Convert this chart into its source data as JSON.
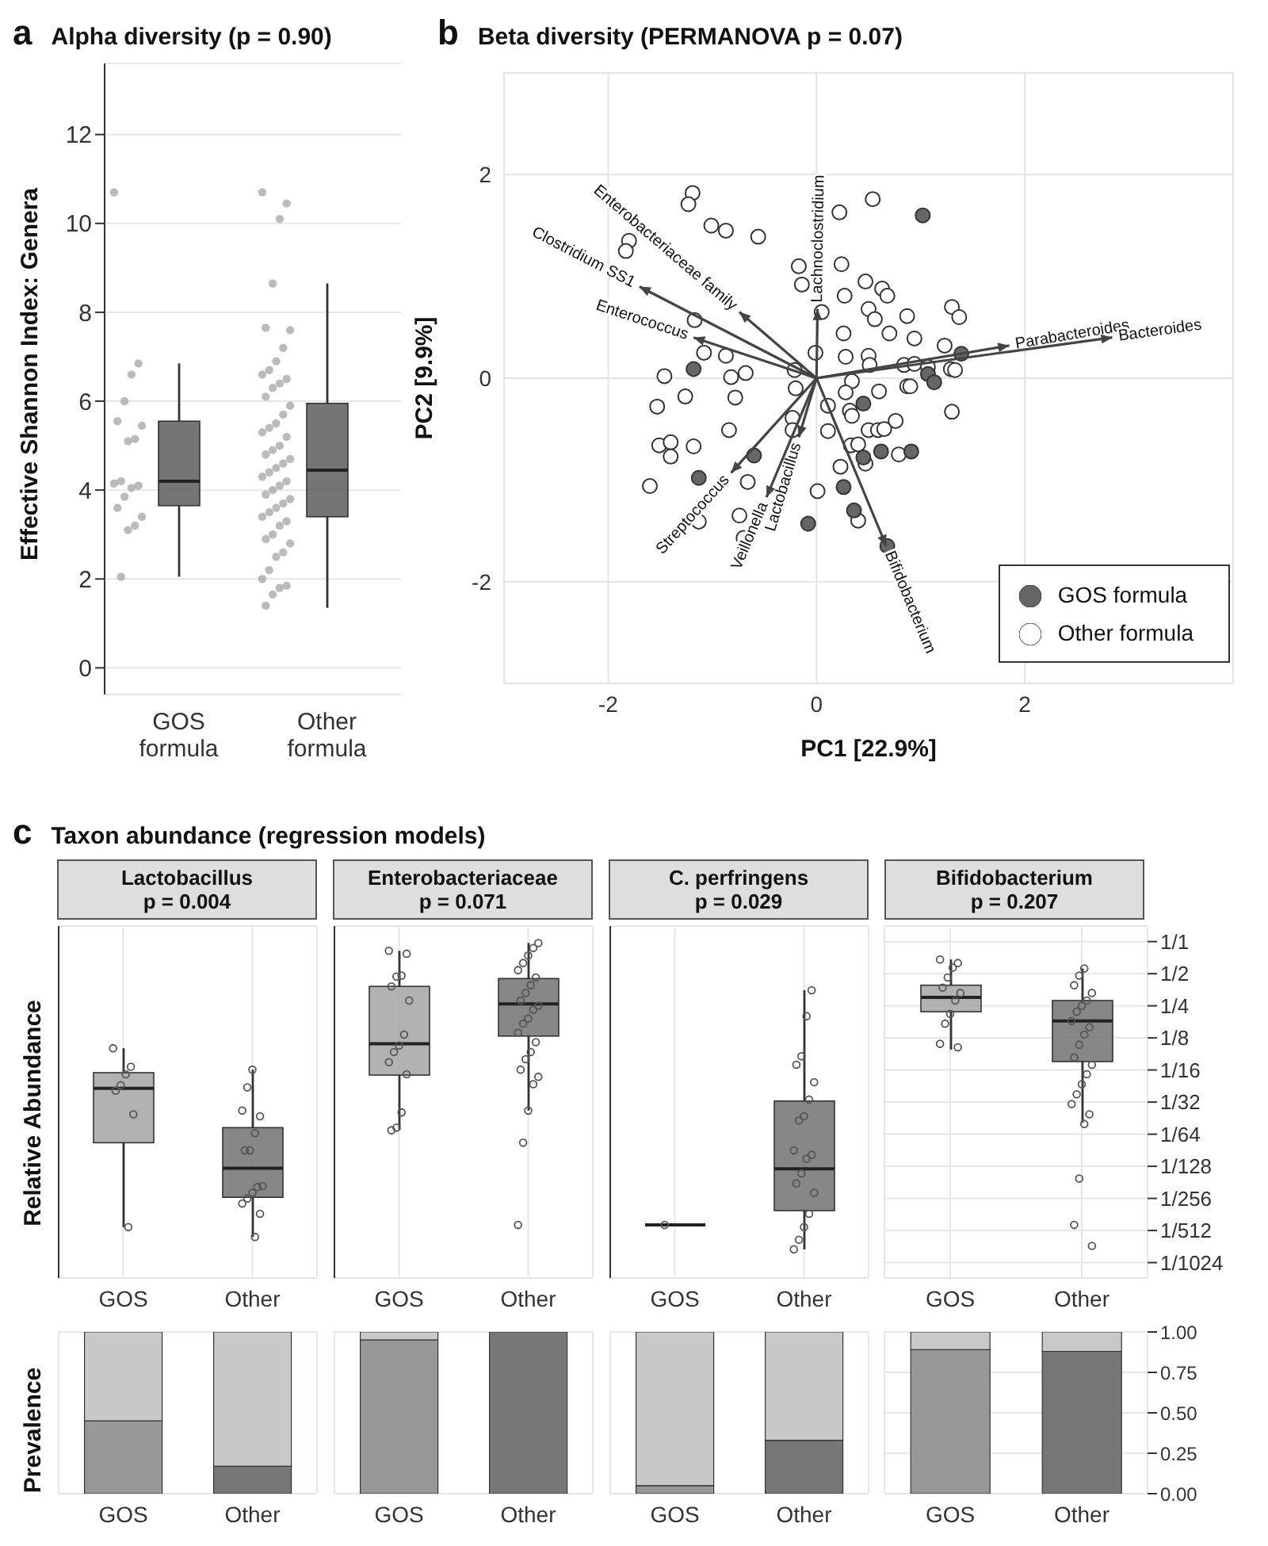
{
  "chart_data": [
    {
      "type": "box",
      "title": "Alpha diversity (p = 0.90)",
      "ylabel": "Effective Shannon Index: Genera",
      "annotations": [
        "a"
      ],
      "categories": [
        "GOS formula",
        "Other formula"
      ],
      "colors": [
        "#666666",
        "#666666"
      ],
      "ylim": [
        -0.6,
        13.6
      ],
      "yticks": [
        0,
        2,
        4,
        6,
        8,
        10,
        12
      ],
      "grid": "y",
      "boxes": [
        {
          "low": 2.05,
          "q1": 3.65,
          "median": 4.2,
          "q3": 5.55,
          "high": 6.85
        },
        {
          "low": 1.35,
          "q1": 3.4,
          "median": 4.45,
          "q3": 5.95,
          "high": 8.65
        }
      ],
      "series": [
        {
          "type": "scatter",
          "color": "#aaaaaa",
          "x": [
            "GOS formula",
            "GOS formula",
            "GOS formula",
            "GOS formula",
            "GOS formula",
            "GOS formula",
            "GOS formula",
            "GOS formula",
            "GOS formula",
            "GOS formula",
            "GOS formula",
            "GOS formula",
            "GOS formula",
            "GOS formula",
            "GOS formula",
            "GOS formula",
            "GOS formula",
            "GOS formula",
            "Other formula",
            "Other formula",
            "Other formula",
            "Other formula",
            "Other formula",
            "Other formula",
            "Other formula",
            "Other formula",
            "Other formula",
            "Other formula",
            "Other formula",
            "Other formula",
            "Other formula",
            "Other formula",
            "Other formula",
            "Other formula",
            "Other formula",
            "Other formula",
            "Other formula",
            "Other formula",
            "Other formula",
            "Other formula",
            "Other formula",
            "Other formula",
            "Other formula",
            "Other formula",
            "Other formula",
            "Other formula",
            "Other formula",
            "Other formula",
            "Other formula",
            "Other formula",
            "Other formula",
            "Other formula",
            "Other formula",
            "Other formula",
            "Other formula",
            "Other formula",
            "Other formula",
            "Other formula",
            "Other formula",
            "Other formula",
            "Other formula",
            "Other formula",
            "Other formula",
            "Other formula",
            "Other formula",
            "Other formula",
            "Other formula",
            "Other formula"
          ],
          "values": [
            10.7,
            6.85,
            6.6,
            6.0,
            5.55,
            5.45,
            5.15,
            5.1,
            4.2,
            4.15,
            4.1,
            4.05,
            3.85,
            3.6,
            3.4,
            3.2,
            3.1,
            2.05,
            10.7,
            10.45,
            10.1,
            8.65,
            7.65,
            7.6,
            7.2,
            6.9,
            6.7,
            6.6,
            6.5,
            6.4,
            6.3,
            6.1,
            5.9,
            5.7,
            5.5,
            5.4,
            5.3,
            5.2,
            5.0,
            4.9,
            4.8,
            4.7,
            4.6,
            4.5,
            4.4,
            4.3,
            4.2,
            4.1,
            4.0,
            3.9,
            3.8,
            3.7,
            3.6,
            3.5,
            3.4,
            3.3,
            3.2,
            3.0,
            2.9,
            2.8,
            2.6,
            2.5,
            2.2,
            2.0,
            1.85,
            1.8,
            1.65,
            1.4
          ]
        }
      ]
    },
    {
      "type": "scatter",
      "title": "Beta diversity (PERMANOVA p = 0.07)",
      "xlabel": "PC1 [22.9%]",
      "ylabel": "PC2 [9.9%]",
      "xlim": [
        -3,
        4
      ],
      "ylim": [
        -3,
        3
      ],
      "xticks": [
        -2,
        0,
        2
      ],
      "yticks": [
        -2,
        0,
        2
      ],
      "grid": true,
      "legend": "bottom right",
      "marker": "circle",
      "annotations": [
        "b",
        "Enterobacteriaceae  family",
        "Clostridium  SS1",
        "Enterococcus",
        "Lachnoclostridium",
        "Parabacteroides",
        "Bacteroides",
        "Streptococcus",
        "Lactobacillus",
        "Veillonella",
        "Bifidobacterium"
      ],
      "series": [
        {
          "name": "GOS formula",
          "color": "#666666",
          "x": [
            1.02,
            -1.18,
            1.39,
            1.07,
            1.13,
            0.45,
            0.62,
            0.91,
            0.45,
            -0.6,
            -1.13,
            0.26,
            0.36,
            -0.08,
            0.68
          ],
          "values": [
            1.6,
            0.09,
            0.24,
            0.04,
            -0.04,
            -0.25,
            -0.72,
            -0.72,
            -0.78,
            -0.76,
            -0.98,
            -1.07,
            -1.3,
            -1.43,
            -1.65
          ]
        },
        {
          "name": "Other formula",
          "color": "#ffffff",
          "x": [
            -1.19,
            -1.23,
            -1.01,
            -0.87,
            -0.56,
            -1.8,
            -1.83,
            0.54,
            0.22,
            -0.17,
            0.24,
            -0.14,
            0.47,
            0.63,
            0.68,
            0.27,
            0.05,
            0.5,
            0.56,
            0.87,
            1.3,
            1.37,
            0.7,
            0.94,
            0.26,
            1.23,
            -1.17,
            -1.08,
            -0.87,
            -0.01,
            0.28,
            0.5,
            0.51,
            0.84,
            0.94,
            1.07,
            1.29,
            1.33,
            -1.46,
            -0.82,
            -0.68,
            -0.21,
            0.34,
            -0.2,
            -1.26,
            -0.78,
            -1.53,
            0.28,
            0.6,
            0.87,
            0.9,
            0.11,
            0.32,
            0.34,
            0.76,
            1.3,
            -0.23,
            -0.23,
            0.11,
            0.5,
            0.59,
            0.65,
            -0.84,
            -1.51,
            -1.4,
            -1.18,
            -1.4,
            0.33,
            0.4,
            0.79,
            0.47,
            0.23,
            -0.66,
            -1.6,
            0.01,
            -0.74,
            0.4,
            -1.13,
            -0.7
          ],
          "values": [
            1.82,
            1.71,
            1.5,
            1.45,
            1.39,
            1.35,
            1.25,
            1.76,
            1.63,
            1.1,
            1.12,
            0.92,
            0.95,
            0.88,
            0.81,
            0.81,
            0.65,
            0.68,
            0.58,
            0.61,
            0.7,
            0.6,
            0.44,
            0.39,
            0.44,
            0.32,
            0.57,
            0.25,
            0.22,
            0.25,
            0.21,
            0.22,
            0.13,
            0.13,
            0.14,
            0.11,
            0.09,
            0.08,
            0.02,
            0.01,
            0.05,
            0.08,
            -0.03,
            -0.1,
            -0.18,
            -0.19,
            -0.28,
            -0.14,
            -0.13,
            -0.08,
            -0.08,
            -0.27,
            -0.32,
            -0.37,
            -0.42,
            -0.33,
            -0.39,
            -0.51,
            -0.52,
            -0.51,
            -0.51,
            -0.5,
            -0.51,
            -0.66,
            -0.63,
            -0.67,
            -0.77,
            -0.66,
            -0.65,
            -0.75,
            -0.84,
            -0.87,
            -1.02,
            -1.06,
            -1.11,
            -1.35,
            -1.4,
            -1.41,
            -1.57
          ]
        }
      ]
    },
    {
      "type": "box",
      "title": "Lactobacillus",
      "subtitle": "p = 0.004",
      "ylabel": "Relative Abundance",
      "annotations": [
        "c",
        "Taxon abundance (regression models)"
      ],
      "categories": [
        "GOS",
        "Other"
      ],
      "colors": [
        "#aaaaaa",
        "#7a7a7a"
      ],
      "log": true,
      "ylim": [
        0.0007,
        1.4
      ],
      "tick_labels": "x",
      "grid": true,
      "yticks": [
        {
          "value": 1,
          "label": null
        },
        {
          "value": 0.5,
          "label": null
        },
        {
          "value": 0.25,
          "label": null
        },
        {
          "value": 0.125,
          "label": null
        },
        {
          "value": 0.0625,
          "label": null
        },
        {
          "value": 0.03125,
          "label": null
        },
        {
          "value": 0.015625,
          "label": null
        },
        {
          "value": 0.0078125,
          "label": null
        },
        {
          "value": 0.00390625,
          "label": null
        },
        {
          "value": 0.001953125,
          "label": null
        },
        {
          "value": 0.0009765625,
          "label": null
        }
      ],
      "boxes": [
        {
          "low": 0.0021,
          "q1": 0.013,
          "median": 0.042,
          "q3": 0.059,
          "high": 0.1
        },
        {
          "low": 0.0017,
          "q1": 0.004,
          "median": 0.0075,
          "q3": 0.018,
          "high": 0.063
        }
      ],
      "series": [
        {
          "type": "scatter",
          "color": "#555555",
          "x": [
            "GOS",
            "GOS",
            "GOS",
            "GOS",
            "GOS",
            "GOS",
            "GOS",
            "Other",
            "Other",
            "Other",
            "Other",
            "Other",
            "Other",
            "Other",
            "Other",
            "Other",
            "Other",
            "Other",
            "Other",
            "Other",
            "Other"
          ],
          "values": [
            0.1,
            0.067,
            0.057,
            0.045,
            0.04,
            0.024,
            0.0021,
            0.063,
            0.043,
            0.026,
            0.023,
            0.016,
            0.011,
            0.011,
            0.0051,
            0.005,
            0.0044,
            0.0039,
            0.0035,
            0.0028,
            0.0017
          ]
        }
      ]
    },
    {
      "type": "box",
      "title": "Enterobacteriaceae",
      "subtitle": "p = 0.071",
      "categories": [
        "GOS",
        "Other"
      ],
      "colors": [
        "#aaaaaa",
        "#7a7a7a"
      ],
      "log": true,
      "ylim": [
        0.0007,
        1.4
      ],
      "tick_labels": "x",
      "grid": true,
      "yticks": [
        {
          "value": 1,
          "label": null
        },
        {
          "value": 0.5,
          "label": null
        },
        {
          "value": 0.25,
          "label": null
        },
        {
          "value": 0.125,
          "label": null
        },
        {
          "value": 0.0625,
          "label": null
        },
        {
          "value": 0.03125,
          "label": null
        },
        {
          "value": 0.015625,
          "label": null
        },
        {
          "value": 0.0078125,
          "label": null
        },
        {
          "value": 0.00390625,
          "label": null
        },
        {
          "value": 0.001953125,
          "label": null
        },
        {
          "value": 0.0009765625,
          "label": null
        }
      ],
      "boxes": [
        {
          "low": 0.017,
          "q1": 0.056,
          "median": 0.11,
          "q3": 0.38,
          "high": 0.82
        },
        {
          "low": 0.026,
          "q1": 0.13,
          "median": 0.26,
          "q3": 0.45,
          "high": 0.97
        }
      ],
      "series": [
        {
          "type": "scatter",
          "color": "#555555",
          "x": [
            "GOS",
            "GOS",
            "GOS",
            "GOS",
            "GOS",
            "GOS",
            "GOS",
            "GOS",
            "GOS",
            "GOS",
            "GOS",
            "GOS",
            "GOS",
            "GOS",
            "Other",
            "Other",
            "Other",
            "Other",
            "Other",
            "Other",
            "Other",
            "Other",
            "Other",
            "Other",
            "Other",
            "Other",
            "Other",
            "Other",
            "Other",
            "Other",
            "Other",
            "Other",
            "Other",
            "Other",
            "Other",
            "Other",
            "Other"
          ],
          "values": [
            0.82,
            0.77,
            0.48,
            0.47,
            0.38,
            0.28,
            0.134,
            0.106,
            0.092,
            0.074,
            0.057,
            0.025,
            0.018,
            0.017,
            0.97,
            0.87,
            0.74,
            0.63,
            0.54,
            0.46,
            0.39,
            0.33,
            0.28,
            0.25,
            0.23,
            0.19,
            0.17,
            0.14,
            0.114,
            0.092,
            0.079,
            0.063,
            0.054,
            0.046,
            0.026,
            0.013,
            0.0022
          ]
        }
      ]
    },
    {
      "type": "box",
      "title": "C. perfringens",
      "subtitle": "p = 0.029",
      "categories": [
        "GOS",
        "Other"
      ],
      "colors": [
        "#222222",
        "#7a7a7a"
      ],
      "log": true,
      "ylim": [
        0.0007,
        1.4
      ],
      "tick_labels": "x",
      "grid": true,
      "yticks": [
        {
          "value": 1,
          "label": null
        },
        {
          "value": 0.5,
          "label": null
        },
        {
          "value": 0.25,
          "label": null
        },
        {
          "value": 0.125,
          "label": null
        },
        {
          "value": 0.0625,
          "label": null
        },
        {
          "value": 0.03125,
          "label": null
        },
        {
          "value": 0.015625,
          "label": null
        },
        {
          "value": 0.0078125,
          "label": null
        },
        {
          "value": 0.00390625,
          "label": null
        },
        {
          "value": 0.001953125,
          "label": null
        },
        {
          "value": 0.0009765625,
          "label": null
        }
      ],
      "boxes": [
        {
          "low": 0.0022,
          "q1": 0.0022,
          "median": 0.0022,
          "q3": 0.0022,
          "high": 0.0022
        },
        {
          "low": 0.0013,
          "q1": 0.003,
          "median": 0.0074,
          "q3": 0.032,
          "high": 0.35
        }
      ],
      "series": [
        {
          "type": "scatter",
          "color": "#555555",
          "x": [
            "GOS",
            "Other",
            "Other",
            "Other",
            "Other",
            "Other",
            "Other",
            "Other",
            "Other",
            "Other",
            "Other",
            "Other",
            "Other",
            "Other",
            "Other",
            "Other",
            "Other",
            "Other",
            "Other"
          ],
          "values": [
            0.0022,
            0.35,
            0.2,
            0.084,
            0.07,
            0.048,
            0.033,
            0.023,
            0.021,
            0.011,
            0.01,
            0.0092,
            0.0067,
            0.0054,
            0.0044,
            0.0028,
            0.0021,
            0.0016,
            0.0013
          ]
        }
      ]
    },
    {
      "type": "box",
      "title": "Bifidobacterium",
      "subtitle": "p = 0.207",
      "categories": [
        "GOS",
        "Other"
      ],
      "colors": [
        "#aaaaaa",
        "#7a7a7a"
      ],
      "log": true,
      "ylim": [
        0.0007,
        1.4
      ],
      "grid": true,
      "yticks": [
        {
          "value": 1,
          "label": "1/1"
        },
        {
          "value": 0.5,
          "label": "1/2"
        },
        {
          "value": 0.25,
          "label": "1/4"
        },
        {
          "value": 0.125,
          "label": "1/8"
        },
        {
          "value": 0.0625,
          "label": "1/16"
        },
        {
          "value": 0.03125,
          "label": "1/32"
        },
        {
          "value": 0.015625,
          "label": "1/64"
        },
        {
          "value": 0.0078125,
          "label": "1/128"
        },
        {
          "value": 0.00390625,
          "label": "1/256"
        },
        {
          "value": 0.001953125,
          "label": "1/512"
        },
        {
          "value": 0.0009765625,
          "label": "1/1024"
        }
      ],
      "boxes": [
        {
          "low": 0.097,
          "q1": 0.22,
          "median": 0.3,
          "q3": 0.39,
          "high": 0.68
        },
        {
          "low": 0.02,
          "q1": 0.075,
          "median": 0.18,
          "q3": 0.28,
          "high": 0.56
        }
      ],
      "series": [
        {
          "type": "scatter",
          "color": "#555555",
          "x": [
            "GOS",
            "GOS",
            "GOS",
            "GOS",
            "GOS",
            "GOS",
            "GOS",
            "GOS",
            "GOS",
            "GOS",
            "GOS",
            "Other",
            "Other",
            "Other",
            "Other",
            "Other",
            "Other",
            "Other",
            "Other",
            "Other",
            "Other",
            "Other",
            "Other",
            "Other",
            "Other",
            "Other",
            "Other",
            "Other",
            "Other",
            "Other",
            "Other",
            "Other",
            "Other"
          ],
          "values": [
            0.68,
            0.63,
            0.57,
            0.46,
            0.37,
            0.33,
            0.28,
            0.21,
            0.17,
            0.11,
            0.102,
            0.56,
            0.48,
            0.39,
            0.33,
            0.28,
            0.25,
            0.22,
            0.18,
            0.157,
            0.134,
            0.108,
            0.082,
            0.07,
            0.057,
            0.046,
            0.037,
            0.03,
            0.024,
            0.0195,
            0.006,
            0.0022,
            0.0014
          ]
        }
      ]
    },
    {
      "type": "bar",
      "stacked": true,
      "ylabel": "Prevalence",
      "categories": [
        "GOS",
        "Other"
      ],
      "ylim": [
        0,
        1
      ],
      "tick_labels": "x",
      "grid": true,
      "yticks": [
        {
          "value": 0,
          "label": null
        },
        {
          "value": 0.25,
          "label": null
        },
        {
          "value": 0.5,
          "label": null
        },
        {
          "value": 0.75,
          "label": null
        },
        {
          "value": 1,
          "label": null
        }
      ],
      "series": [
        {
          "colors": [
            "#999999",
            "#777777"
          ],
          "values": [
            0.45,
            0.17
          ]
        },
        {
          "color": "#c8c8c8",
          "values": [
            0.55,
            0.83
          ]
        }
      ]
    },
    {
      "type": "bar",
      "stacked": true,
      "categories": [
        "GOS",
        "Other"
      ],
      "ylim": [
        0,
        1
      ],
      "tick_labels": "x",
      "grid": true,
      "yticks": [
        {
          "value": 0,
          "label": null
        },
        {
          "value": 0.25,
          "label": null
        },
        {
          "value": 0.5,
          "label": null
        },
        {
          "value": 0.75,
          "label": null
        },
        {
          "value": 1,
          "label": null
        }
      ],
      "series": [
        {
          "colors": [
            "#999999",
            "#777777"
          ],
          "values": [
            0.95,
            1
          ]
        },
        {
          "color": "#c8c8c8",
          "values": [
            0.05,
            null
          ]
        }
      ]
    },
    {
      "type": "bar",
      "stacked": true,
      "categories": [
        "GOS",
        "Other"
      ],
      "ylim": [
        0,
        1
      ],
      "tick_labels": "x",
      "grid": true,
      "yticks": [
        {
          "value": 0,
          "label": null
        },
        {
          "value": 0.25,
          "label": null
        },
        {
          "value": 0.5,
          "label": null
        },
        {
          "value": 0.75,
          "label": null
        },
        {
          "value": 1,
          "label": null
        }
      ],
      "series": [
        {
          "colors": [
            "#999999",
            "#777777"
          ],
          "values": [
            0.05,
            0.33
          ]
        },
        {
          "color": "#c8c8c8",
          "values": [
            0.95,
            0.67
          ]
        }
      ]
    },
    {
      "type": "bar",
      "stacked": true,
      "categories": [
        "GOS",
        "Other"
      ],
      "ylim": [
        0,
        1
      ],
      "grid": true,
      "yticks": [
        {
          "value": 0,
          "label": "0.00"
        },
        {
          "value": 0.25,
          "label": "0.25"
        },
        {
          "value": 0.5,
          "label": "0.50"
        },
        {
          "value": 0.75,
          "label": "0.75"
        },
        {
          "value": 1,
          "label": "1.00"
        }
      ],
      "series": [
        {
          "colors": [
            "#999999",
            "#777777"
          ],
          "values": [
            0.89,
            0.88
          ]
        },
        {
          "color": "#c8c8c8",
          "values": [
            0.11,
            0.12
          ]
        }
      ]
    }
  ]
}
